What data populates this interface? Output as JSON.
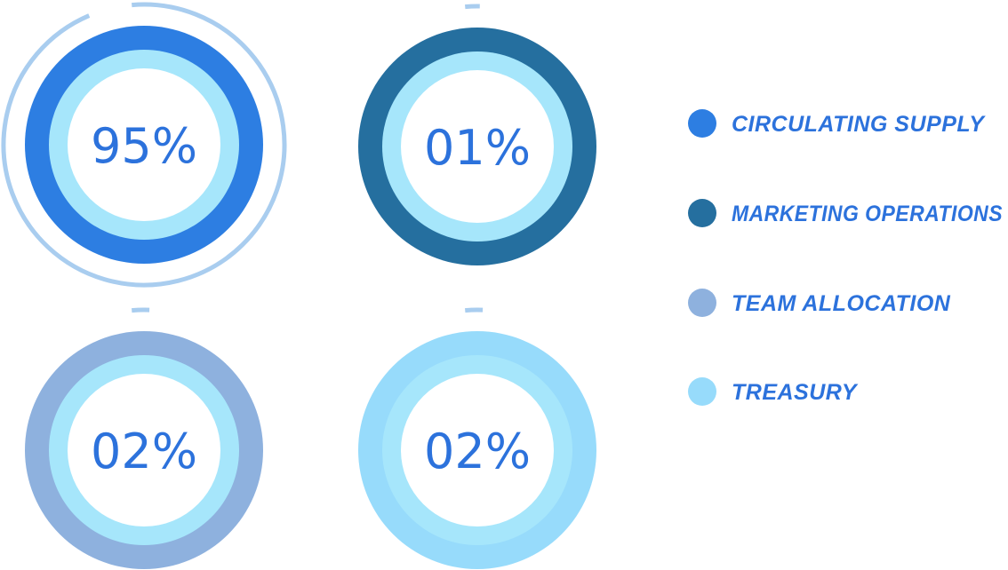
{
  "colors": {
    "label_text": "#2c72dc",
    "inner_ring": "#a6e6fb",
    "center_fill": "#ffffff",
    "halo": "#a9cdef"
  },
  "chart_data": {
    "type": "donut",
    "series": [
      {
        "label": "CIRCULATING SUPPLY",
        "value": 95,
        "display": "95%",
        "color": "#2d7ee2"
      },
      {
        "label": "MARKETING OPERATIONS",
        "value": 1,
        "display": "01%",
        "color": "#256f9f"
      },
      {
        "label": "TEAM ALLOCATION",
        "value": 2,
        "display": "02%",
        "color": "#8eb1de"
      },
      {
        "label": "TREASURY",
        "value": 2,
        "display": "02%",
        "color": "#97dbfb"
      }
    ]
  }
}
